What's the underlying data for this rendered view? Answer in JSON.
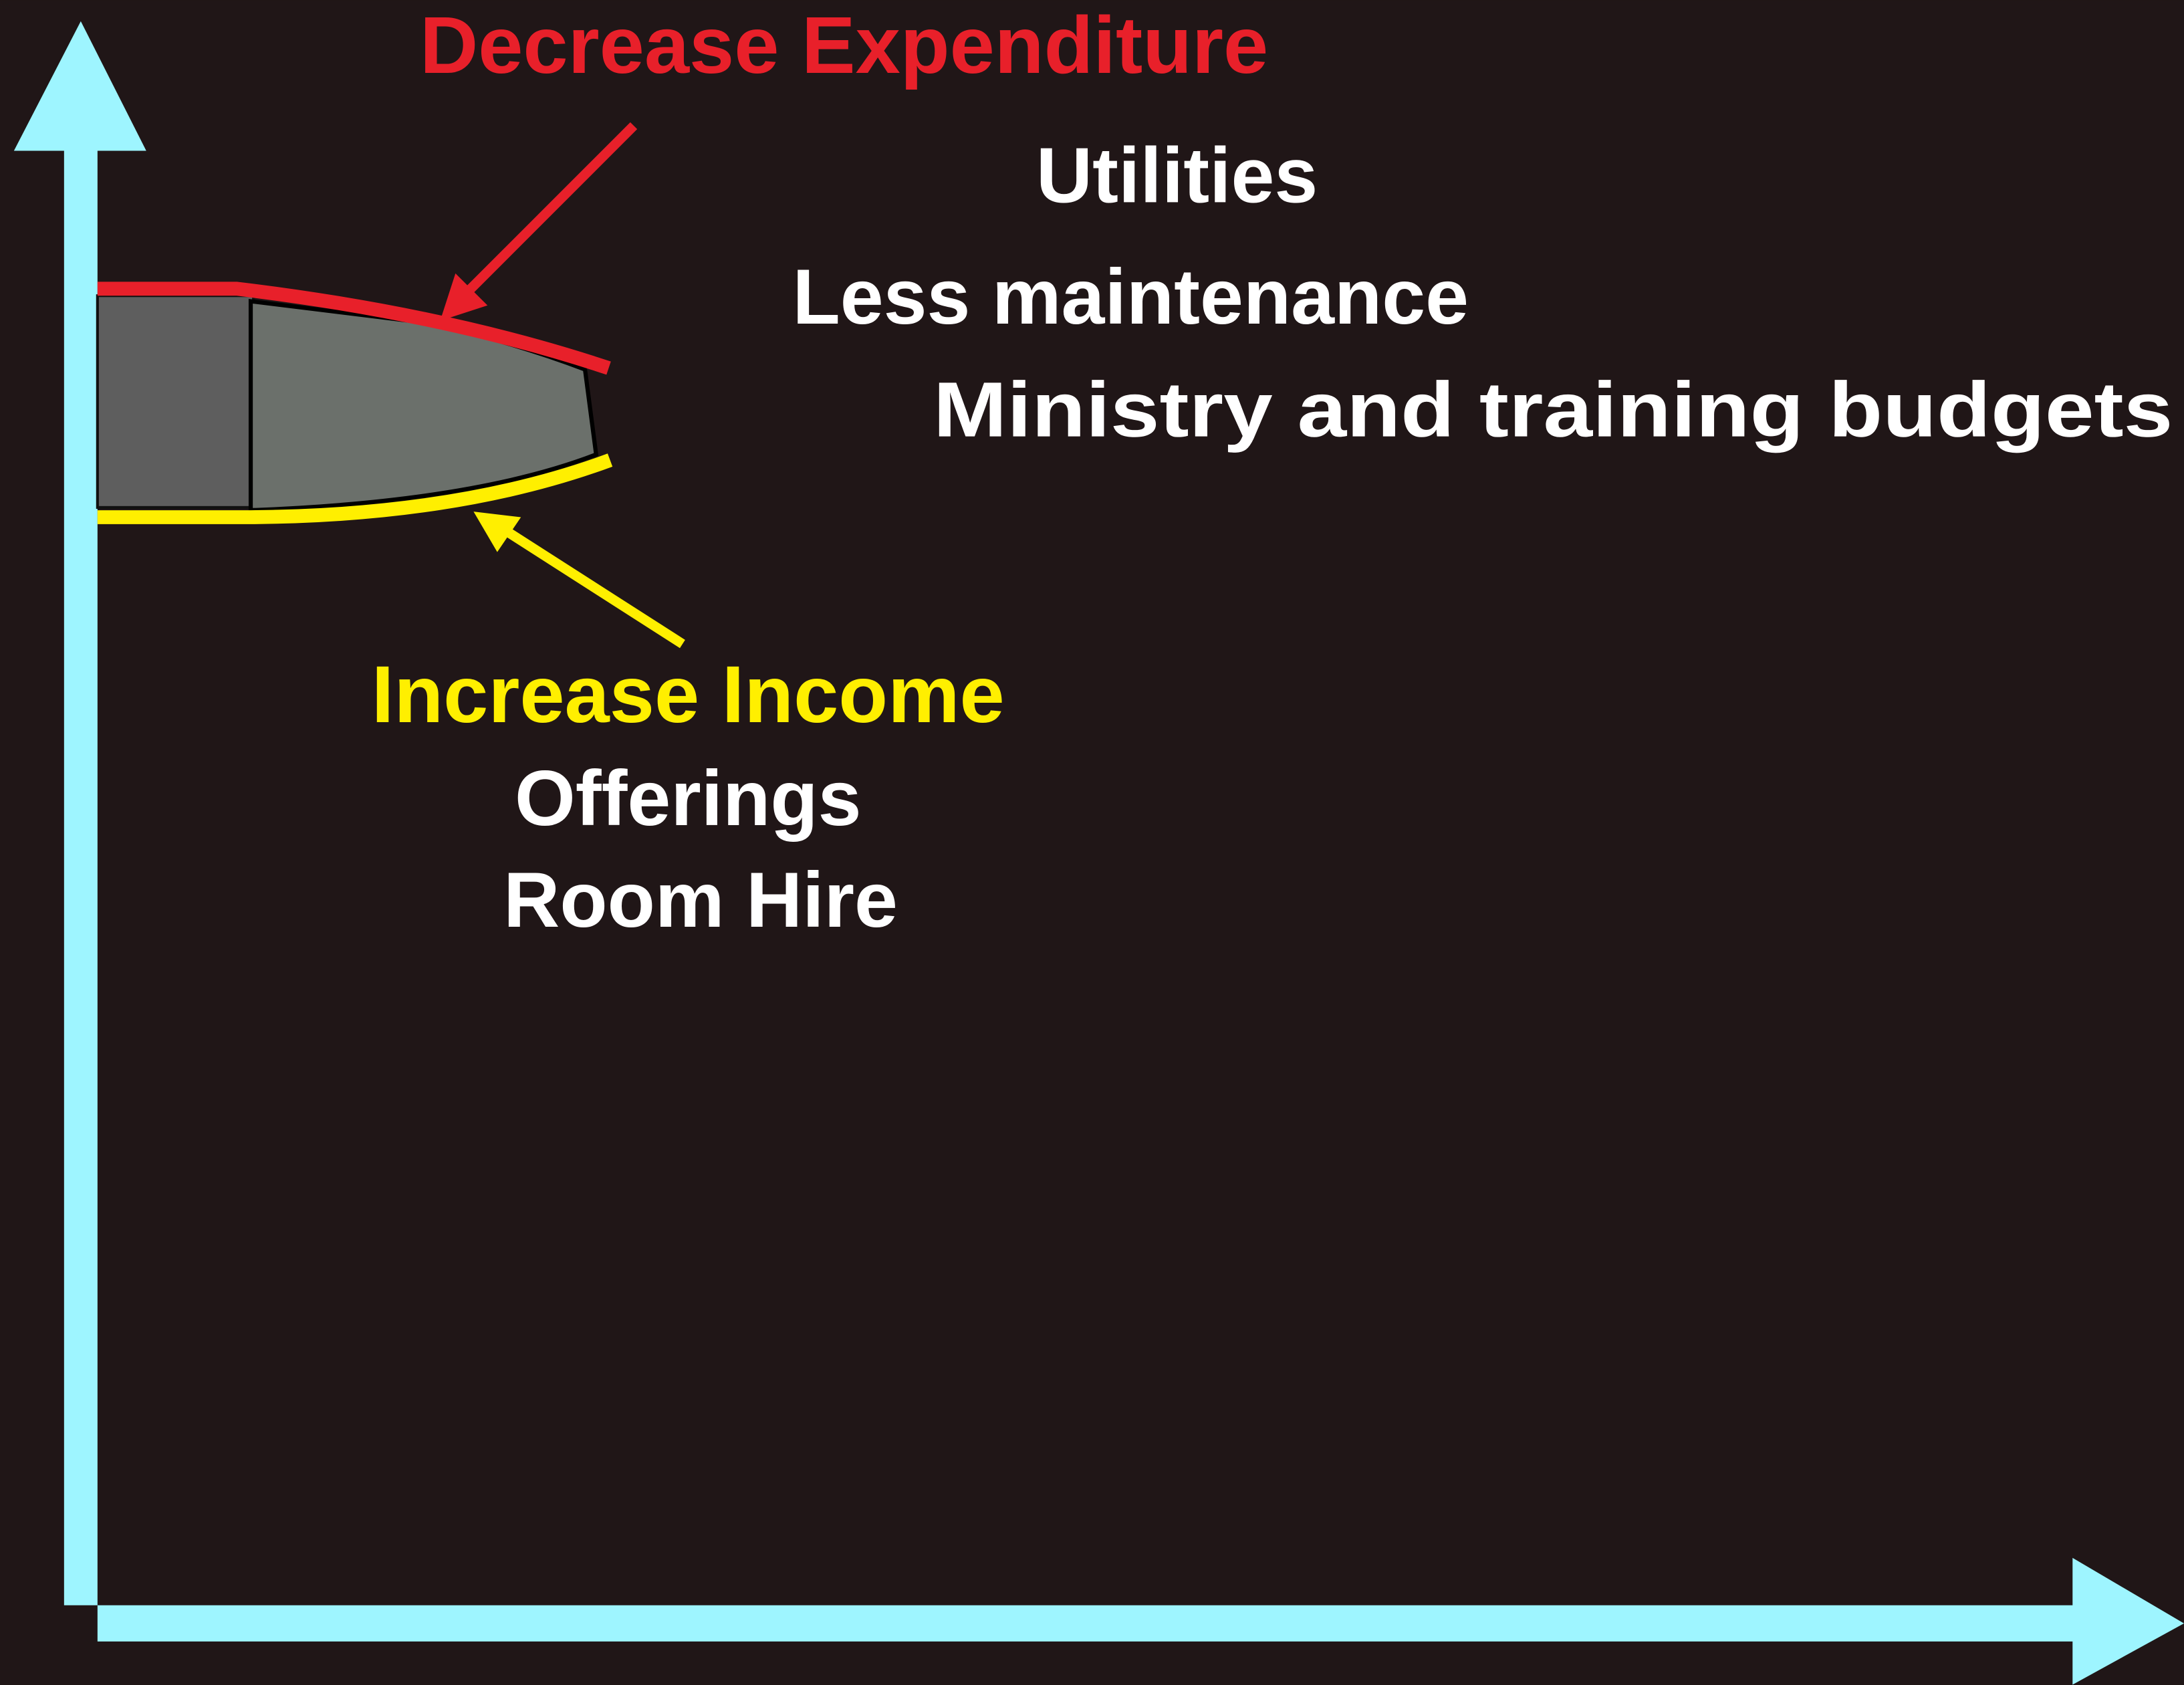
{
  "expenditure": {
    "heading": "Decrease Expenditure",
    "items": [
      "Utilities",
      "Less maintenance",
      "Ministry and training budgets"
    ]
  },
  "income": {
    "heading": "Increase Income",
    "items": [
      "Offerings",
      "Room Hire"
    ]
  }
}
